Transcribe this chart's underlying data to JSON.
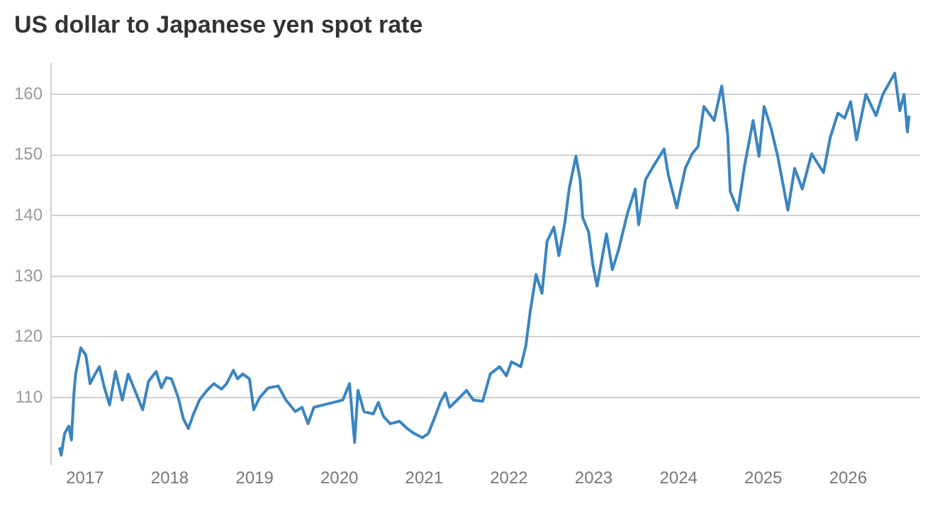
{
  "chart_data": {
    "type": "line",
    "title": "US dollar to Japanese yen spot rate",
    "x": [
      2016.7,
      2016.72,
      2016.76,
      2016.81,
      2016.84,
      2016.87,
      2016.89,
      2016.95,
      2017.01,
      2017.06,
      2017.12,
      2017.17,
      2017.23,
      2017.29,
      2017.36,
      2017.44,
      2017.51,
      2017.6,
      2017.68,
      2017.75,
      2017.84,
      2017.9,
      2017.96,
      2018.02,
      2018.1,
      2018.16,
      2018.22,
      2018.28,
      2018.35,
      2018.44,
      2018.52,
      2018.61,
      2018.67,
      2018.75,
      2018.8,
      2018.86,
      2018.94,
      2018.99,
      2019.06,
      2019.16,
      2019.28,
      2019.37,
      2019.48,
      2019.56,
      2019.63,
      2019.7,
      2019.81,
      2019.93,
      2020.04,
      2020.12,
      2020.18,
      2020.22,
      2020.29,
      2020.4,
      2020.46,
      2020.52,
      2020.6,
      2020.71,
      2020.8,
      2020.88,
      2020.98,
      2021.05,
      2021.13,
      2021.19,
      2021.25,
      2021.3,
      2021.39,
      2021.5,
      2021.58,
      2021.69,
      2021.78,
      2021.89,
      2021.97,
      2022.03,
      2022.14,
      2022.2,
      2022.25,
      2022.32,
      2022.39,
      2022.45,
      2022.53,
      2022.59,
      2022.66,
      2022.71,
      2022.79,
      2022.84,
      2022.87,
      2022.94,
      2022.99,
      2023.04,
      2023.15,
      2023.22,
      2023.29,
      2023.4,
      2023.49,
      2023.53,
      2023.61,
      2023.71,
      2023.83,
      2023.88,
      2023.98,
      2024.08,
      2024.16,
      2024.23,
      2024.3,
      2024.42,
      2024.51,
      2024.58,
      2024.61,
      2024.7,
      2024.78,
      2024.88,
      2024.95,
      2025.01,
      2025.09,
      2025.17,
      2025.29,
      2025.37,
      2025.46,
      2025.57,
      2025.71,
      2025.79,
      2025.88,
      2025.96,
      2026.03,
      2026.1,
      2026.21,
      2026.33,
      2026.41,
      2026.55,
      2026.61,
      2026.66,
      2026.7,
      2026.72
    ],
    "series": [
      {
        "color": "#3a85c0",
        "values": [
          101.8,
          100.5,
          104.1,
          105.3,
          103,
          110.8,
          113.9,
          118.2,
          117,
          112.3,
          113.9,
          115.1,
          111.6,
          108.8,
          114.3,
          109.6,
          113.9,
          110.8,
          108,
          112.7,
          114.3,
          111.6,
          113.3,
          113.1,
          110,
          106.5,
          104.9,
          107.3,
          109.6,
          111.2,
          112.3,
          111.4,
          112.3,
          114.5,
          113.1,
          113.9,
          113.1,
          108,
          110,
          111.6,
          111.9,
          109.6,
          107.7,
          108.4,
          105.7,
          108.4,
          108.8,
          109.2,
          109.6,
          112.3,
          102.6,
          111.2,
          107.7,
          107.3,
          109.2,
          106.9,
          105.7,
          106.1,
          104.9,
          104.1,
          103.4,
          104.1,
          106.9,
          109.2,
          110.8,
          108.4,
          109.6,
          111.2,
          109.6,
          109.4,
          113.9,
          115.1,
          113.6,
          115.9,
          115.1,
          118.6,
          124.1,
          130.3,
          127.2,
          135.8,
          138.1,
          133.4,
          138.9,
          144.4,
          149.8,
          145.9,
          139.7,
          137.3,
          131.9,
          128.4,
          137,
          131.1,
          134.2,
          140.5,
          144.4,
          138.5,
          145.9,
          148.3,
          151,
          146.7,
          141.3,
          147.8,
          150.2,
          151.4,
          158,
          155.7,
          161.4,
          153.4,
          144,
          140.9,
          148.3,
          155.7,
          149.8,
          158,
          154.5,
          149.8,
          140.9,
          147.8,
          144.4,
          150.2,
          147.1,
          152.9,
          156.9,
          156.1,
          158.8,
          152.5,
          160,
          156.5,
          160,
          163.5,
          157.3,
          160,
          153.8,
          156.5
        ]
      }
    ],
    "xlim": [
      2016.6,
      2026.85
    ],
    "xticks": [
      {
        "value": 2017,
        "label": "2017"
      },
      {
        "value": 2018,
        "label": "2018"
      },
      {
        "value": 2019,
        "label": "2019"
      },
      {
        "value": 2020,
        "label": "2020"
      },
      {
        "value": 2021,
        "label": "2021"
      },
      {
        "value": 2022,
        "label": "2022"
      },
      {
        "value": 2023,
        "label": "2023"
      },
      {
        "value": 2024,
        "label": "2024"
      },
      {
        "value": 2025,
        "label": "2025"
      },
      {
        "value": 2026,
        "label": "2026"
      }
    ],
    "ylim": [
      99,
      165
    ],
    "yticks": [
      110,
      120,
      130,
      140,
      150,
      160
    ],
    "grid": "y",
    "marker": "none",
    "line_style": "solid"
  }
}
